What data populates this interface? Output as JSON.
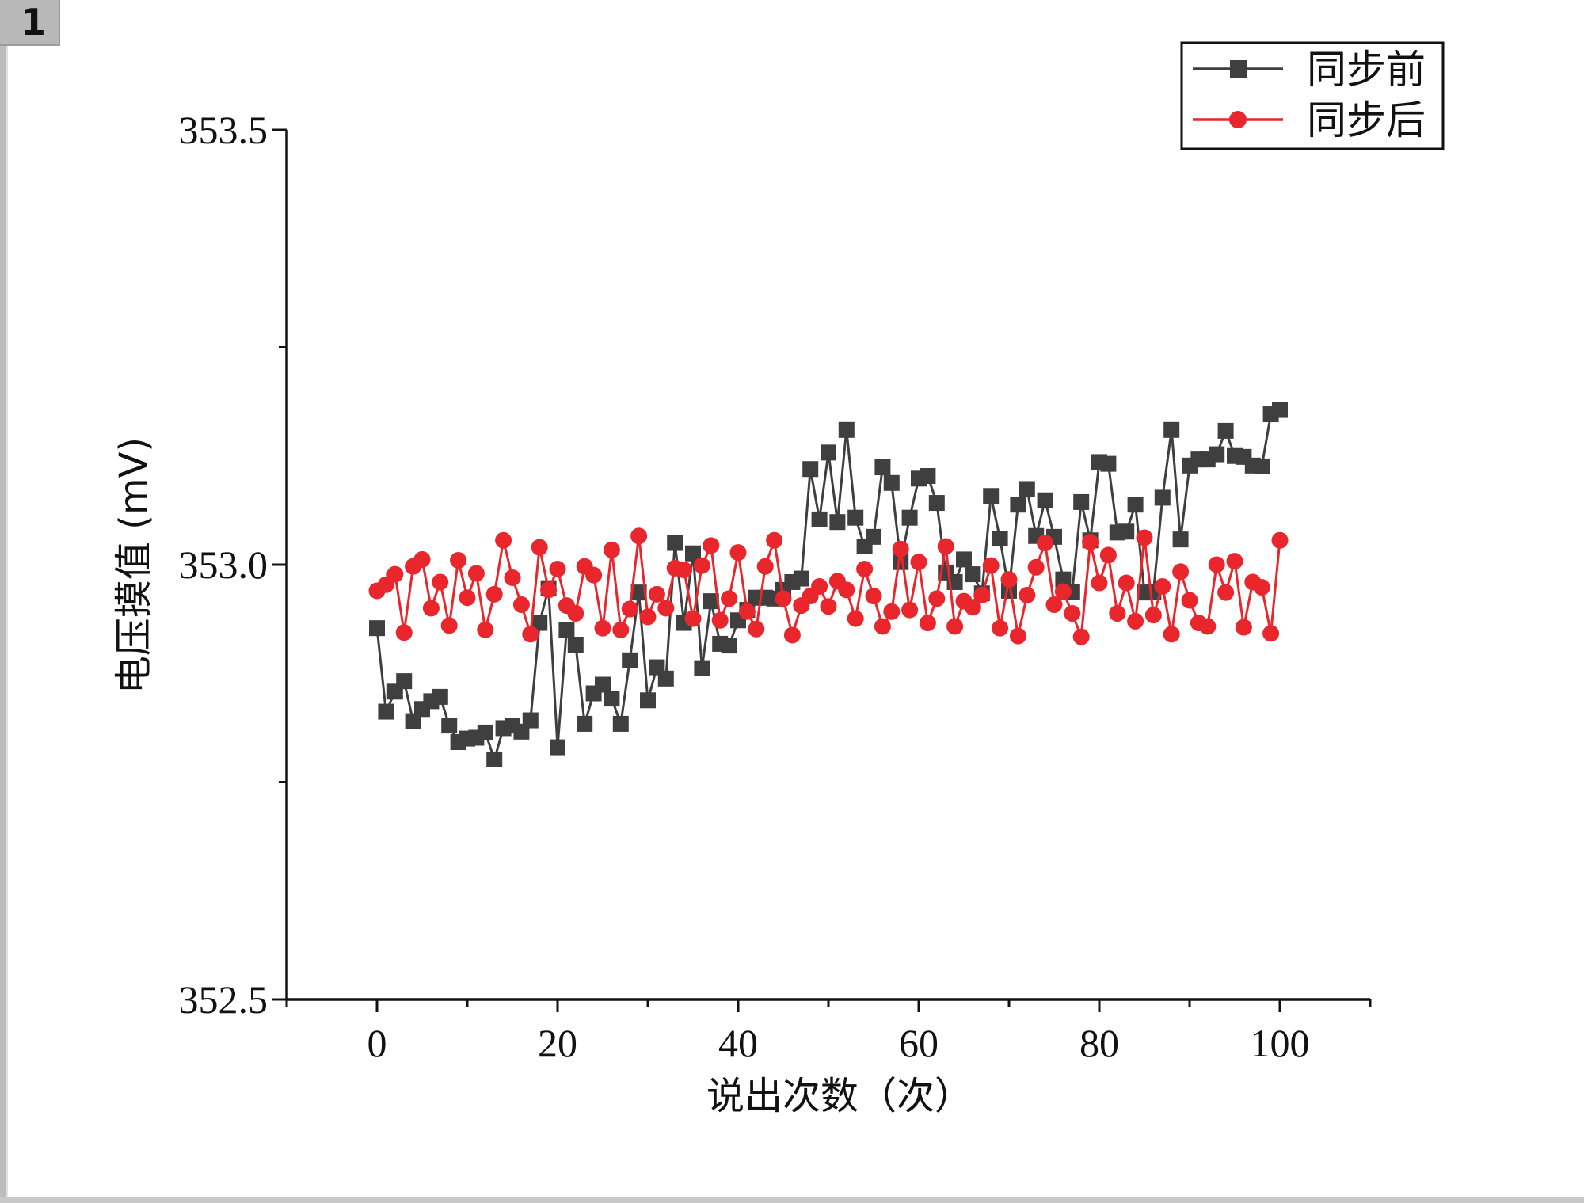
{
  "page_badge": "1",
  "chart_data": {
    "type": "line",
    "xlabel": "说出次数（次）",
    "ylabel": "电压摸值 (mV)",
    "xlim": [
      -10,
      110
    ],
    "ylim": [
      352.5,
      353.5
    ],
    "x_ticks": [
      "0",
      "20",
      "40",
      "60",
      "80",
      "100"
    ],
    "y_ticks": [
      "352.5",
      "353.0",
      "353.5"
    ],
    "legend_position": "top-right",
    "series": [
      {
        "name": "同步前",
        "color": "#3f3f3f",
        "marker": "square",
        "values": [
          352.927,
          352.831,
          352.854,
          352.866,
          352.82,
          352.834,
          352.843,
          352.848,
          352.815,
          352.796,
          352.8,
          352.801,
          352.807,
          352.776,
          352.812,
          352.815,
          352.808,
          352.821,
          352.933,
          352.973,
          352.79,
          352.925,
          352.908,
          352.817,
          352.852,
          352.862,
          352.846,
          352.817,
          352.89,
          352.968,
          352.844,
          352.882,
          352.869,
          353.025,
          352.933,
          353.013,
          352.881,
          352.958,
          352.909,
          352.907,
          352.936,
          352.948,
          352.962,
          352.962,
          352.961,
          352.971,
          352.98,
          352.984,
          353.11,
          353.052,
          353.129,
          353.049,
          353.155,
          353.054,
          353.021,
          353.032,
          353.112,
          353.094,
          353.003,
          353.054,
          353.099,
          353.102,
          353.071,
          352.991,
          352.98,
          353.006,
          352.989,
          352.967,
          353.079,
          353.03,
          352.97,
          353.069,
          353.087,
          353.033,
          353.074,
          353.032,
          352.983,
          352.969,
          353.072,
          353.028,
          353.118,
          353.116,
          353.037,
          353.038,
          353.069,
          352.968,
          352.969,
          353.077,
          353.155,
          353.029,
          353.114,
          353.121,
          353.121,
          353.127,
          353.154,
          353.125,
          353.124,
          353.114,
          353.113,
          353.173,
          353.178
        ]
      },
      {
        "name": "同步后",
        "color": "#e8262b",
        "marker": "circle",
        "values": [
          352.97,
          352.977,
          352.989,
          352.922,
          352.998,
          353.006,
          352.95,
          352.98,
          352.93,
          353.005,
          352.962,
          352.99,
          352.925,
          352.966,
          353.028,
          352.985,
          352.954,
          352.92,
          353.02,
          352.971,
          352.995,
          352.953,
          352.944,
          352.998,
          352.988,
          352.927,
          353.017,
          352.925,
          352.949,
          353.033,
          352.94,
          352.966,
          352.95,
          352.996,
          352.994,
          352.938,
          352.999,
          353.022,
          352.936,
          352.961,
          353.014,
          352.946,
          352.926,
          352.998,
          353.028,
          352.961,
          352.919,
          352.953,
          352.964,
          352.975,
          352.952,
          352.981,
          352.971,
          352.938,
          352.995,
          352.964,
          352.929,
          352.946,
          353.018,
          352.948,
          353.003,
          352.933,
          352.961,
          353.021,
          352.929,
          352.958,
          352.951,
          352.965,
          352.999,
          352.927,
          352.983,
          352.918,
          352.965,
          352.997,
          353.025,
          352.954,
          352.969,
          352.944,
          352.917,
          353.026,
          352.979,
          353.011,
          352.944,
          352.979,
          352.935,
          353.031,
          352.942,
          352.975,
          352.92,
          352.992,
          352.959,
          352.933,
          352.929,
          353.0,
          352.968,
          353.004,
          352.928,
          352.98,
          352.974,
          352.921,
          353.028
        ]
      }
    ]
  }
}
